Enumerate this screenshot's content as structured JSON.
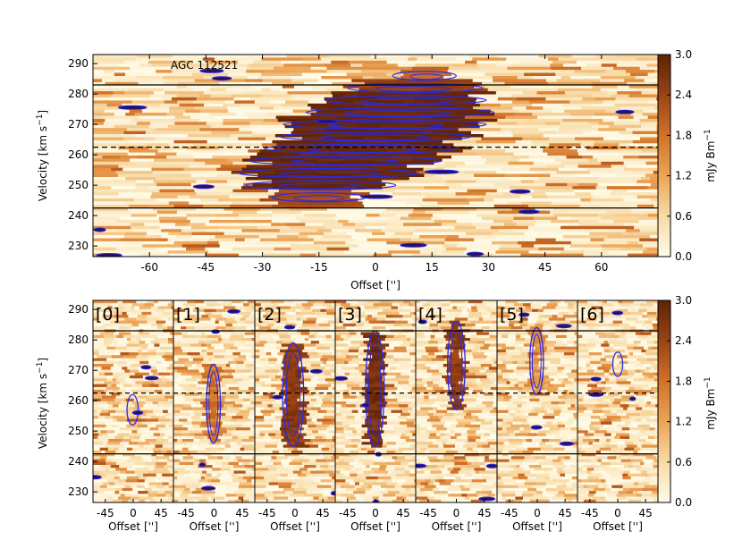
{
  "chart_data": [
    {
      "type": "heatmap",
      "object_label": "AGC 112521",
      "xlabel": "Offset ['']",
      "ylabel": "Velocity [km s^-1]",
      "xticks": [
        -60,
        -45,
        -30,
        -15,
        0,
        15,
        30,
        45,
        60
      ],
      "yticks": [
        230,
        240,
        250,
        260,
        270,
        280,
        290
      ],
      "xlim": [
        -75,
        75
      ],
      "ylim": [
        226.5,
        293
      ],
      "colorbar": {
        "label": "mJy Bm^-1",
        "ticks": [
          "0.0",
          "0.6",
          "1.2",
          "1.8",
          "2.4",
          "3.0"
        ],
        "range": [
          0,
          3.0
        ],
        "colormap": [
          "#fffbe8",
          "#f8dba6",
          "#eca456",
          "#d1722a",
          "#9b4316",
          "#5e2306"
        ]
      },
      "contour_color": "#2828ee",
      "reference_lines": {
        "solid": [
          283,
          242.5
        ],
        "dashed": [
          262.5
        ]
      },
      "emission_blob": [
        {
          "v": 286,
          "x0": 6,
          "x1": 20,
          "i": 2.0
        },
        {
          "v": 282,
          "x0": -6,
          "x1": 27,
          "i": 2.6
        },
        {
          "v": 278,
          "x0": -12,
          "x1": 28,
          "i": 3.0
        },
        {
          "v": 274,
          "x0": -17,
          "x1": 30,
          "i": 3.0
        },
        {
          "v": 270,
          "x0": -23,
          "x1": 28,
          "i": 3.0
        },
        {
          "v": 266,
          "x0": -24,
          "x1": 24,
          "i": 3.0
        },
        {
          "v": 262,
          "x0": -28,
          "x1": 20,
          "i": 3.0
        },
        {
          "v": 258,
          "x0": -32,
          "x1": 16,
          "i": 3.0
        },
        {
          "v": 254,
          "x0": -35,
          "x1": 10,
          "i": 3.0
        },
        {
          "v": 250,
          "x0": -33,
          "x1": 4,
          "i": 3.0
        },
        {
          "v": 246,
          "x0": -26,
          "x1": -4,
          "i": 2.4
        }
      ]
    },
    {
      "type": "heatmap",
      "xlabel": "Offset ['']",
      "ylabel": "Velocity [km s^-1]",
      "xticks": [
        -45,
        0,
        45
      ],
      "yticks": [
        230,
        240,
        250,
        260,
        270,
        280,
        290
      ],
      "xlim": [
        -65,
        65
      ],
      "ylim": [
        226.5,
        293
      ],
      "colorbar": {
        "label": "mJy Bm^-1",
        "ticks": [
          "0.0",
          "0.6",
          "1.2",
          "1.8",
          "2.4",
          "3.0"
        ],
        "range": [
          0,
          3.0
        ]
      },
      "reference_lines": {
        "solid": [
          283,
          242.5
        ],
        "dashed": [
          262.5
        ]
      },
      "panels": [
        {
          "label": "[0]",
          "blob": {
            "vmin": 252,
            "vmax": 262,
            "x0": -10,
            "x1": 8,
            "i": 0.8
          }
        },
        {
          "label": "[1]",
          "blob": {
            "vmin": 246,
            "vmax": 272,
            "x0": -12,
            "x1": 10,
            "i": 2.0
          }
        },
        {
          "label": "[2]",
          "blob": {
            "vmin": 245,
            "vmax": 279,
            "x0": -20,
            "x1": 14,
            "i": 2.8
          }
        },
        {
          "label": "[3]",
          "blob": {
            "vmin": 245,
            "vmax": 283,
            "x0": -16,
            "x1": 14,
            "i": 3.0
          }
        },
        {
          "label": "[4]",
          "blob": {
            "vmin": 257,
            "vmax": 286,
            "x0": -14,
            "x1": 14,
            "i": 2.8
          }
        },
        {
          "label": "[5]",
          "blob": {
            "vmin": 262,
            "vmax": 284,
            "x0": -12,
            "x1": 10,
            "i": 1.6
          }
        },
        {
          "label": "[6]",
          "blob": {
            "vmin": 268,
            "vmax": 276,
            "x0": -8,
            "x1": 8,
            "i": 0.6
          }
        }
      ]
    }
  ]
}
